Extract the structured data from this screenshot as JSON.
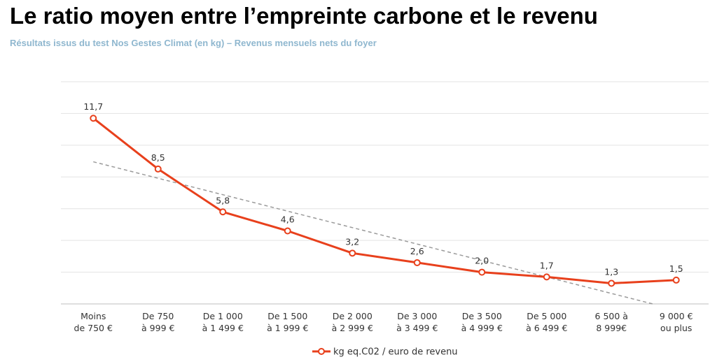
{
  "chart_data": {
    "type": "line",
    "title": "Le ratio moyen entre l’empreinte carbone et le revenu",
    "subtitle": "Résultats issus du test Nos Gestes Climat (en kg) – Revenus mensuels nets du foyer",
    "categories": [
      [
        "Moins",
        "de 750 €"
      ],
      [
        "De 750",
        "à 999 €"
      ],
      [
        "De 1 000",
        "à 1 499 €"
      ],
      [
        "De 1 500",
        "à 1 999 €"
      ],
      [
        "De 2 000",
        "à 2 999 €"
      ],
      [
        "De 3 000",
        "à 3 499 €"
      ],
      [
        "De 3 500",
        "à 4 999 €"
      ],
      [
        "De 5 000",
        "à 6 499 €"
      ],
      [
        "6 500 à",
        "8 999€"
      ],
      [
        "9 000 €",
        "ou plus"
      ]
    ],
    "series": [
      {
        "name": "kg eq.C02 / euro de revenu",
        "values": [
          11.7,
          8.5,
          5.8,
          4.6,
          3.2,
          2.6,
          2.0,
          1.7,
          1.3,
          1.5
        ],
        "labels": [
          "11,7",
          "8,5",
          "5,8",
          "4,6",
          "3,2",
          "2,6",
          "2,0",
          "1,7",
          "1,3",
          "1,5"
        ],
        "color": "#e8401c"
      }
    ],
    "trendline": {
      "type": "linear",
      "style": "dashed",
      "color": "#9a9a9a"
    },
    "ylim": [
      0,
      14
    ],
    "gridlines": true,
    "y_tick_labels": false,
    "legend_position": "bottom",
    "xlabel": "",
    "ylabel": ""
  }
}
